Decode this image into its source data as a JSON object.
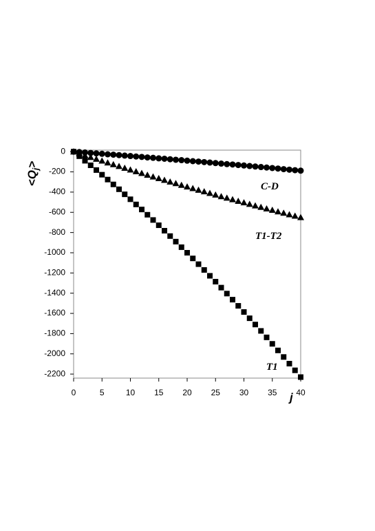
{
  "chart_data": {
    "type": "scatter",
    "ylabel": [
      "<Q",
      "j",
      ">"
    ],
    "xlabel": "j",
    "x": [
      0,
      1,
      2,
      3,
      4,
      5,
      6,
      7,
      8,
      9,
      10,
      11,
      12,
      13,
      14,
      15,
      16,
      17,
      18,
      19,
      20,
      21,
      22,
      23,
      24,
      25,
      26,
      27,
      28,
      29,
      30,
      31,
      32,
      33,
      34,
      35,
      36,
      37,
      38,
      39,
      40
    ],
    "series": [
      {
        "name": "C-D",
        "color": "#000000",
        "marker": "circle",
        "values": [
          0,
          -4,
          -8,
          -13,
          -17,
          -21,
          -26,
          -30,
          -34,
          -39,
          -43,
          -48,
          -52,
          -57,
          -61,
          -66,
          -70,
          -75,
          -80,
          -84,
          -89,
          -94,
          -98,
          -103,
          -108,
          -113,
          -118,
          -123,
          -127,
          -132,
          -137,
          -142,
          -147,
          -152,
          -157,
          -162,
          -167,
          -173,
          -178,
          -183,
          -188
        ]
      },
      {
        "name": "T1-T2",
        "color": "#000000",
        "marker": "triangle",
        "values": [
          0,
          -18,
          -37,
          -55,
          -73,
          -91,
          -109,
          -126,
          -144,
          -162,
          -179,
          -196,
          -213,
          -231,
          -248,
          -264,
          -281,
          -298,
          -314,
          -331,
          -347,
          -363,
          -379,
          -395,
          -411,
          -427,
          -443,
          -458,
          -473,
          -489,
          -504,
          -519,
          -534,
          -549,
          -564,
          -578,
          -593,
          -607,
          -622,
          -636,
          -650
        ]
      },
      {
        "name": "T1",
        "color": "#000000",
        "marker": "square",
        "values": [
          0,
          -45,
          -90,
          -135,
          -182,
          -228,
          -276,
          -324,
          -372,
          -422,
          -471,
          -522,
          -572,
          -624,
          -676,
          -728,
          -782,
          -835,
          -890,
          -945,
          -1000,
          -1056,
          -1113,
          -1170,
          -1228,
          -1286,
          -1345,
          -1404,
          -1464,
          -1525,
          -1586,
          -1648,
          -1710,
          -1773,
          -1837,
          -1901,
          -1966,
          -2031,
          -2097,
          -2163,
          -2230
        ]
      }
    ],
    "xlim": [
      0,
      40
    ],
    "xticks": [
      0,
      5,
      10,
      15,
      20,
      25,
      30,
      35,
      40
    ],
    "ylim": [
      -2240,
      15
    ],
    "yticks": [
      0,
      -200,
      -400,
      -600,
      -800,
      -1000,
      -1200,
      -1400,
      -1600,
      -1800,
      -2000,
      -2200
    ]
  }
}
